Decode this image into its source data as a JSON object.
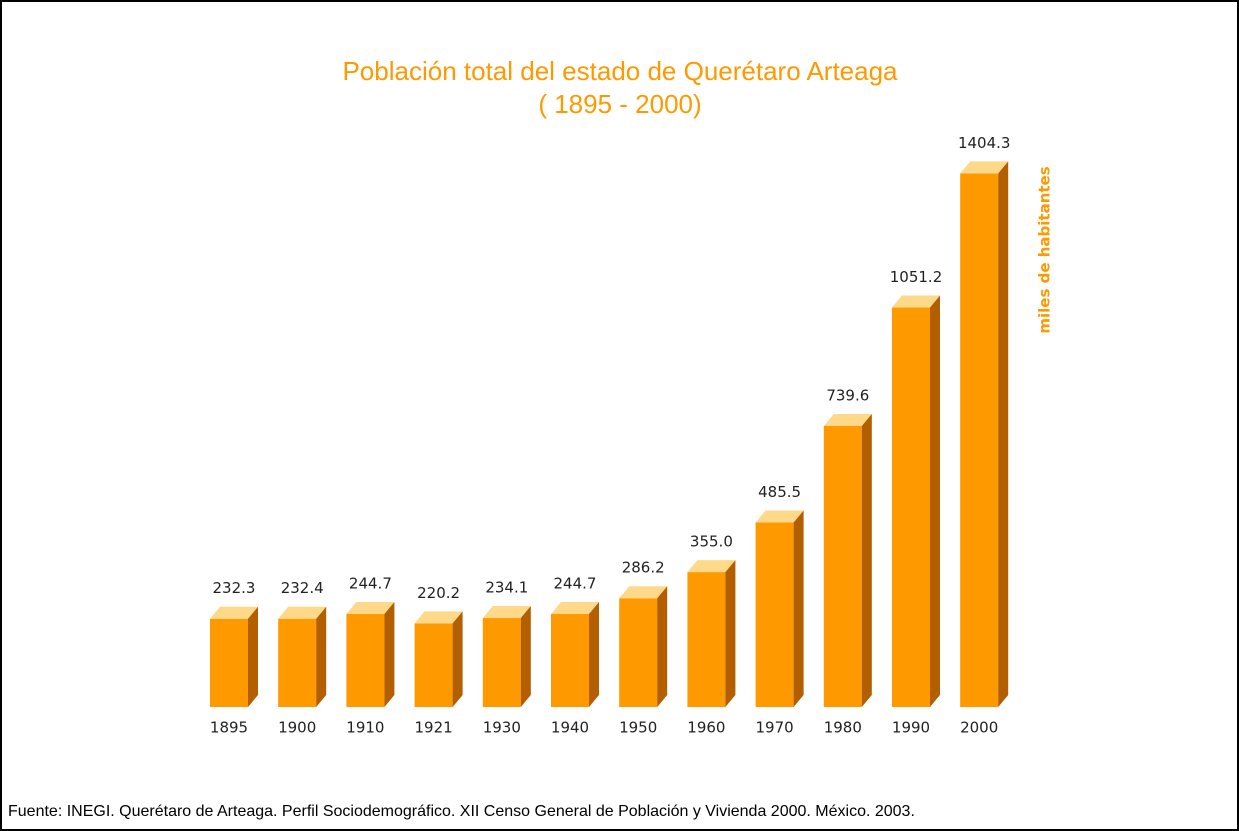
{
  "chart_data": {
    "type": "bar3d",
    "title": "Población total del estado de Querétaro Arteaga",
    "subtitle": "( 1895 - 2000)",
    "y_label": "miles de habitantes",
    "source": "Fuente: INEGI. Querétaro de Arteaga. Perfil Sociodemográfico. XII Censo General de Población y Vivienda 2000. México. 2003.",
    "categories": [
      "1895",
      "1900",
      "1910",
      "1921",
      "1930",
      "1940",
      "1950",
      "1960",
      "1970",
      "1980",
      "1990",
      "2000"
    ],
    "values": [
      232.3,
      232.4,
      244.7,
      220.2,
      234.1,
      244.7,
      286.2,
      355.0,
      485.5,
      739.6,
      1051.2,
      1404.3
    ],
    "value_labels": [
      "232.3",
      "232.4",
      "244.7",
      "220.2",
      "234.1",
      "244.7",
      "286.2",
      "355.0",
      "485.5",
      "739.6",
      "1051.2",
      "1404.3"
    ],
    "color": "#ff9900",
    "top_color": "#ffd98a",
    "side_color": "#b35f00"
  }
}
